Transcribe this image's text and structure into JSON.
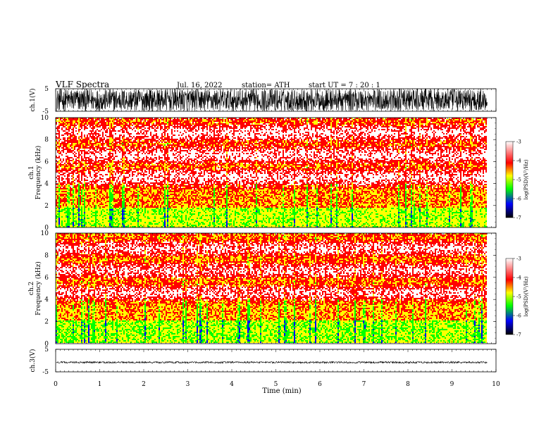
{
  "header": {
    "title": "VLF  Spectra",
    "date": "Jul.  16,  2022",
    "station": "station= ATH",
    "start": "start  UT  =    7  : 20 : 1"
  },
  "colors": {
    "spectrogram": [
      "#ffffff",
      "#ff0000",
      "#ffff00",
      "#00ff00",
      "#0000ff",
      "#000000"
    ],
    "trace": "#000000"
  },
  "chart_data": [
    {
      "type": "line",
      "name": "ch1-waveform",
      "ylabel": "ch.1(V)",
      "ylim": [
        -5,
        5
      ],
      "ytick_labels": [
        "5",
        "-5"
      ],
      "amplitude_range": [
        -5,
        5
      ],
      "x_range": [
        0,
        9.8
      ]
    },
    {
      "type": "heatmap",
      "name": "ch1-spectrogram",
      "ylabel": "ch.1\nFrequency  (kHz)",
      "ylim": [
        0,
        10
      ],
      "yticks": [
        0,
        2,
        4,
        6,
        8,
        10
      ],
      "ytick_labels": [
        "0",
        "2",
        "4",
        "6",
        "8",
        "10"
      ],
      "x_range": [
        0,
        9.8
      ],
      "colorbar": {
        "label": "log(PSD)(V²/Hz)",
        "range": [
          -7,
          -3
        ],
        "tick_labels": [
          "-3",
          "-4",
          "-5",
          "-6",
          "-7"
        ]
      },
      "bands_log_psd": [
        {
          "freq_khz": [
            0,
            1.8
          ],
          "level": -4.6
        },
        {
          "freq_khz": [
            1.8,
            3.5
          ],
          "level": -4.1
        },
        {
          "freq_khz": [
            3.5,
            10
          ],
          "level": -3.5
        }
      ]
    },
    {
      "type": "heatmap",
      "name": "ch2-spectrogram",
      "ylabel": "ch.2\nFrequency  (kHz)",
      "ylim": [
        0,
        10
      ],
      "yticks": [
        0,
        2,
        4,
        6,
        8,
        10
      ],
      "ytick_labels": [
        "0",
        "2",
        "4",
        "6",
        "8",
        "10"
      ],
      "x_range": [
        0,
        9.8
      ],
      "colorbar": {
        "label": "log(PSD)(V²/Hz)",
        "range": [
          -7,
          -3
        ],
        "tick_labels": [
          "-3",
          "-4",
          "-5",
          "-6",
          "-7"
        ]
      },
      "bands_log_psd": [
        {
          "freq_khz": [
            0,
            2
          ],
          "level": -4.7
        },
        {
          "freq_khz": [
            2,
            3.5
          ],
          "level": -4.2
        },
        {
          "freq_khz": [
            3.5,
            10
          ],
          "level": -3.6
        }
      ]
    },
    {
      "type": "line",
      "name": "ch3-waveform",
      "ylabel": "ch.3(V)",
      "ylim": [
        -5,
        5
      ],
      "ytick_labels": [
        "5",
        "-5"
      ],
      "amplitude_range": [
        -1.2,
        -0.4
      ],
      "x_range": [
        0,
        9.8
      ]
    }
  ],
  "xaxis": {
    "label": "Time  (min)",
    "range": [
      0,
      10
    ],
    "ticks": [
      0,
      1,
      2,
      3,
      4,
      5,
      6,
      7,
      8,
      9,
      10
    ],
    "tick_labels": [
      "0",
      "1",
      "2",
      "3",
      "4",
      "5",
      "6",
      "7",
      "8",
      "9",
      "10"
    ]
  }
}
